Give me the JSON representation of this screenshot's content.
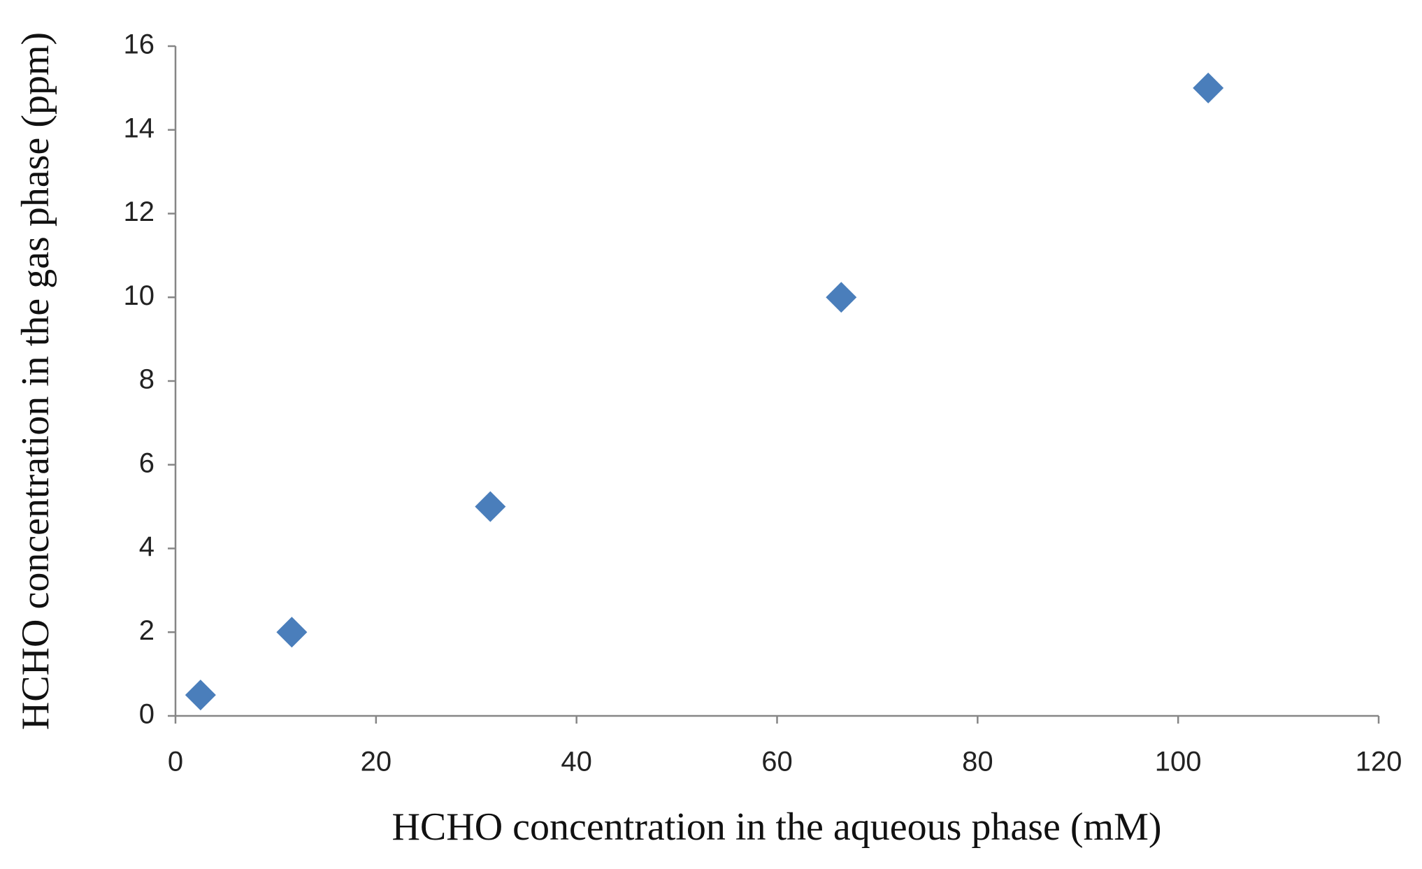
{
  "chart_data": {
    "type": "scatter",
    "x_label": "HCHO concentration in the aqueous phase (mM)",
    "y_label": "HCHO concentration in the gas phase (ppm)",
    "x": [
      2.5,
      11.6,
      31.4,
      66.4,
      103
    ],
    "values": [
      0.5,
      2,
      5,
      10,
      15
    ],
    "color": "#4a7ebb",
    "marker": "diamond",
    "xlim": [
      0,
      120
    ],
    "xticks": [
      0,
      20,
      40,
      60,
      80,
      100,
      120
    ],
    "ylim": [
      0,
      16
    ],
    "yticks": [
      0,
      2,
      4,
      6,
      8,
      10,
      12,
      14,
      16
    ],
    "grid": false
  }
}
